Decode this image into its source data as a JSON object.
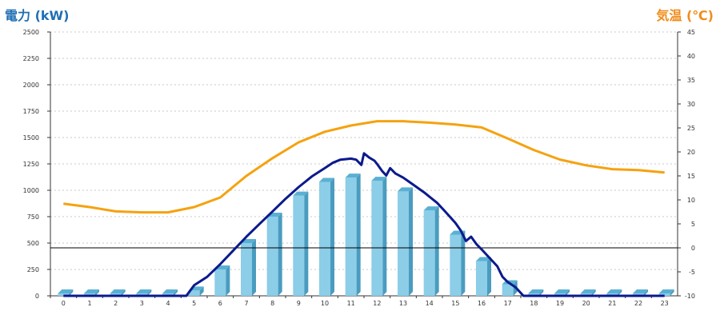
{
  "chart_data": {
    "type": "bar+line",
    "title": "",
    "y_left_label": "電力 (kW)",
    "y_right_label": "気温 (℃)",
    "categories": [
      "0",
      "1",
      "2",
      "3",
      "4",
      "5",
      "6",
      "7",
      "8",
      "9",
      "10",
      "11",
      "12",
      "13",
      "14",
      "15",
      "16",
      "17",
      "18",
      "19",
      "20",
      "21",
      "22",
      "23"
    ],
    "y_left_ticks": [
      "0",
      "250",
      "500",
      "750",
      "1000",
      "1250",
      "1500",
      "1750",
      "2000",
      "2250",
      "2500"
    ],
    "y_right_ticks": [
      "-10",
      "-5",
      "0",
      "5",
      "10",
      "15",
      "20",
      "25",
      "30",
      "35",
      "40",
      "45"
    ],
    "y_left_lim": [
      0,
      2500
    ],
    "y_right_lim": [
      -10,
      45
    ],
    "grid": true,
    "colors": {
      "bar_front": "#8ccde8",
      "bar_side": "#4a9cbf",
      "bar_top": "#5ab0d3",
      "power_line": "#0b1a8c",
      "temp_line": "#f5a20f",
      "zero_line": "#000000",
      "left_label": "#1f6fb4",
      "right_label": "#f08c1a"
    },
    "series": [
      {
        "name": "hourly_power_bars",
        "values": [
          0,
          0,
          0,
          0,
          0,
          50,
          250,
          500,
          750,
          950,
          1080,
          1120,
          1090,
          990,
          810,
          580,
          330,
          110,
          0,
          0,
          0,
          0,
          0,
          0
        ]
      },
      {
        "name": "power_curve",
        "points": [
          [
            0,
            0
          ],
          [
            1,
            0
          ],
          [
            2,
            0
          ],
          [
            3,
            0
          ],
          [
            4,
            0
          ],
          [
            4.7,
            0
          ],
          [
            5,
            100
          ],
          [
            5.5,
            180
          ],
          [
            6,
            300
          ],
          [
            6.5,
            430
          ],
          [
            7,
            560
          ],
          [
            7.5,
            680
          ],
          [
            8,
            800
          ],
          [
            8.5,
            920
          ],
          [
            9,
            1030
          ],
          [
            9.5,
            1130
          ],
          [
            10,
            1210
          ],
          [
            10.3,
            1260
          ],
          [
            10.6,
            1290
          ],
          [
            11,
            1300
          ],
          [
            11.2,
            1290
          ],
          [
            11.4,
            1240
          ],
          [
            11.5,
            1350
          ],
          [
            11.7,
            1310
          ],
          [
            11.9,
            1280
          ],
          [
            12,
            1250
          ],
          [
            12.2,
            1180
          ],
          [
            12.35,
            1140
          ],
          [
            12.5,
            1210
          ],
          [
            12.7,
            1160
          ],
          [
            13,
            1120
          ],
          [
            13.4,
            1050
          ],
          [
            13.8,
            980
          ],
          [
            14,
            940
          ],
          [
            14.3,
            880
          ],
          [
            14.6,
            800
          ],
          [
            15,
            690
          ],
          [
            15.2,
            620
          ],
          [
            15.4,
            520
          ],
          [
            15.6,
            560
          ],
          [
            15.8,
            490
          ],
          [
            16,
            440
          ],
          [
            16.3,
            360
          ],
          [
            16.6,
            280
          ],
          [
            16.8,
            180
          ],
          [
            17,
            130
          ],
          [
            17.3,
            80
          ],
          [
            17.6,
            0
          ],
          [
            18,
            0
          ],
          [
            19,
            0
          ],
          [
            20,
            0
          ],
          [
            21,
            0
          ],
          [
            22,
            0
          ],
          [
            23,
            0
          ]
        ]
      },
      {
        "name": "temperature",
        "points": [
          [
            0,
            9.2
          ],
          [
            1,
            8.5
          ],
          [
            2,
            7.6
          ],
          [
            3,
            7.4
          ],
          [
            4,
            7.4
          ],
          [
            5,
            8.5
          ],
          [
            6,
            10.5
          ],
          [
            7,
            15
          ],
          [
            8,
            18.7
          ],
          [
            9,
            22
          ],
          [
            10,
            24.2
          ],
          [
            11,
            25.5
          ],
          [
            12,
            26.4
          ],
          [
            13,
            26.4
          ],
          [
            14,
            26.1
          ],
          [
            15,
            25.7
          ],
          [
            16,
            25.1
          ],
          [
            17,
            22.8
          ],
          [
            18,
            20.4
          ],
          [
            19,
            18.4
          ],
          [
            20,
            17.2
          ],
          [
            21,
            16.4
          ],
          [
            22,
            16.2
          ],
          [
            23,
            15.7
          ]
        ]
      }
    ]
  }
}
